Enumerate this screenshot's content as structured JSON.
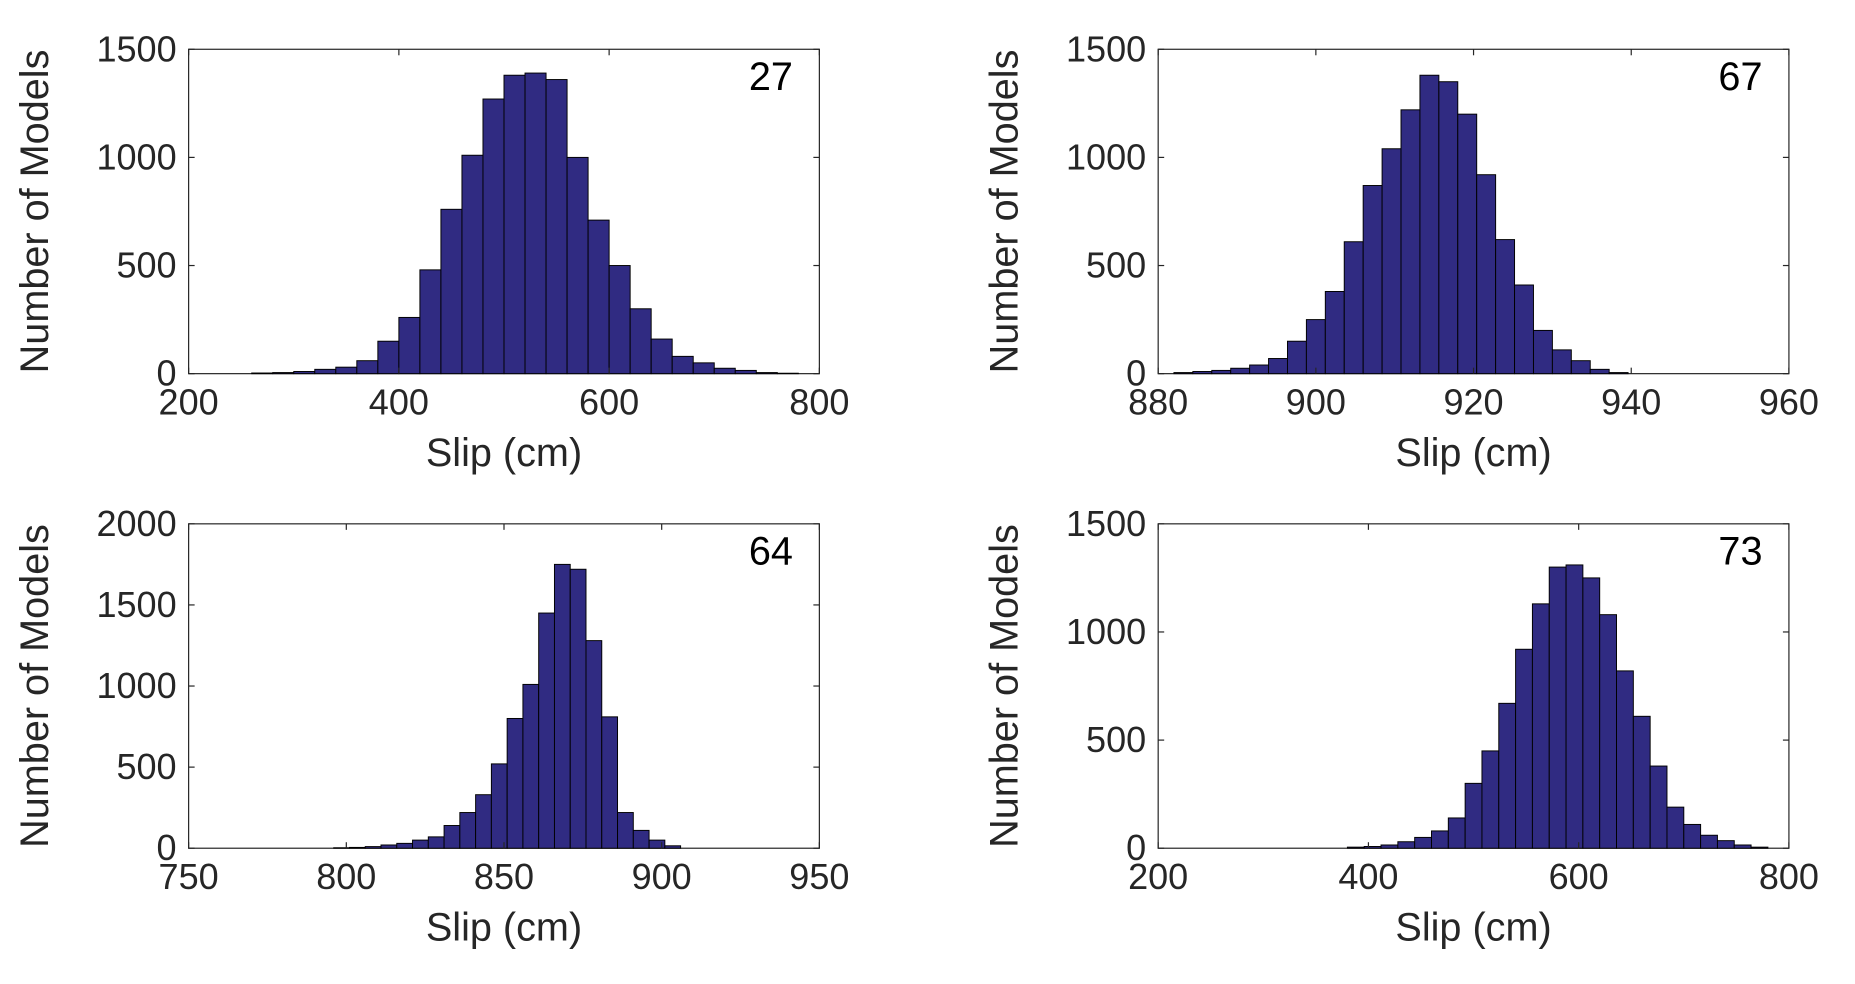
{
  "style": {
    "bar_fill": "#302b82",
    "bar_edge": "#000000",
    "axis_color": "#262626",
    "background": "#ffffff"
  },
  "chart_data": [
    {
      "type": "bar",
      "panel_label": "27",
      "xlabel": "Slip (cm)",
      "ylabel": "Number of Models",
      "xlim": [
        200,
        800
      ],
      "ylim": [
        0,
        1500
      ],
      "xticks": [
        200,
        400,
        600,
        800
      ],
      "yticks": [
        0,
        500,
        1000,
        1500
      ],
      "grid": false,
      "bin_start": 260,
      "bin_width": 20,
      "values": [
        3,
        5,
        10,
        20,
        30,
        60,
        150,
        260,
        480,
        760,
        1010,
        1270,
        1380,
        1390,
        1360,
        1000,
        710,
        500,
        300,
        160,
        80,
        50,
        25,
        15,
        5,
        2
      ]
    },
    {
      "type": "bar",
      "panel_label": "67",
      "xlabel": "Slip (cm)",
      "ylabel": "Number of Models",
      "xlim": [
        880,
        960
      ],
      "ylim": [
        0,
        1500
      ],
      "xticks": [
        880,
        900,
        920,
        940,
        960
      ],
      "yticks": [
        0,
        500,
        1000,
        1500
      ],
      "grid": false,
      "bin_start": 882,
      "bin_width": 2.4,
      "values": [
        5,
        10,
        15,
        25,
        40,
        70,
        150,
        250,
        380,
        610,
        870,
        1040,
        1220,
        1380,
        1350,
        1200,
        920,
        620,
        410,
        200,
        110,
        60,
        20,
        5
      ]
    },
    {
      "type": "bar",
      "panel_label": "64",
      "xlabel": "Slip (cm)",
      "ylabel": "Number of Models",
      "xlim": [
        750,
        950
      ],
      "ylim": [
        0,
        2000
      ],
      "xticks": [
        750,
        800,
        850,
        900,
        950
      ],
      "yticks": [
        0,
        500,
        1000,
        1500,
        2000
      ],
      "grid": false,
      "bin_start": 796,
      "bin_width": 5,
      "values": [
        3,
        5,
        10,
        20,
        30,
        50,
        70,
        140,
        220,
        330,
        520,
        800,
        1010,
        1450,
        1750,
        1720,
        1280,
        810,
        220,
        110,
        50,
        15
      ]
    },
    {
      "type": "bar",
      "panel_label": "73",
      "xlabel": "Slip (cm)",
      "ylabel": "Number of Models",
      "xlim": [
        200,
        800
      ],
      "ylim": [
        0,
        1500
      ],
      "xticks": [
        200,
        400,
        600,
        800
      ],
      "yticks": [
        0,
        500,
        1000,
        1500
      ],
      "grid": false,
      "bin_start": 380,
      "bin_width": 16,
      "values": [
        5,
        8,
        15,
        30,
        50,
        80,
        140,
        300,
        450,
        670,
        920,
        1130,
        1300,
        1310,
        1250,
        1080,
        820,
        610,
        380,
        190,
        110,
        60,
        35,
        15,
        5
      ]
    }
  ]
}
